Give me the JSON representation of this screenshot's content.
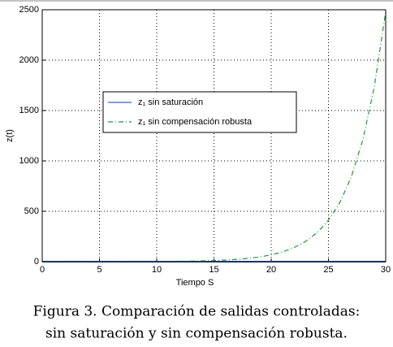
{
  "chart_data": {
    "type": "line",
    "x": [
      0,
      1,
      2,
      3,
      4,
      5,
      6,
      7,
      8,
      9,
      10,
      11,
      12,
      13,
      14,
      15,
      16,
      17,
      18,
      19,
      20,
      21,
      22,
      23,
      24,
      25,
      26,
      27,
      28,
      29,
      30
    ],
    "series": [
      {
        "name": "z₁ sin saturación",
        "color": "#3a5fcd",
        "style": "solid",
        "values": [
          0,
          0,
          0,
          0,
          0,
          0,
          0,
          0,
          0,
          0,
          0,
          0,
          0,
          0,
          0,
          0,
          0,
          0,
          0,
          0,
          0,
          0,
          0,
          0,
          0,
          0,
          0,
          0,
          0,
          0,
          0
        ]
      },
      {
        "name": "z₁ sin compensación robusta",
        "color": "#1f9a3a",
        "style": "dashdot",
        "values": [
          1,
          1,
          1,
          1,
          1,
          1,
          1,
          1,
          1,
          2,
          2,
          3,
          4,
          5,
          8,
          11,
          16,
          23,
          33,
          47,
          68,
          97,
          140,
          200,
          287,
          411,
          588,
          843,
          1208,
          1731,
          2480
        ]
      }
    ],
    "xlabel": "Tiempo S",
    "ylabel": "z(t)",
    "xlim": [
      0,
      30
    ],
    "xticks": [
      0,
      5,
      10,
      15,
      20,
      25,
      30
    ],
    "ylim": [
      0,
      2500
    ],
    "yticks": [
      0,
      500,
      1000,
      1500,
      2000,
      2500
    ],
    "grid": true,
    "caption": [
      "Figura 3. Comparación de salidas controladas:",
      "sin saturación y sin compensación robusta."
    ]
  }
}
